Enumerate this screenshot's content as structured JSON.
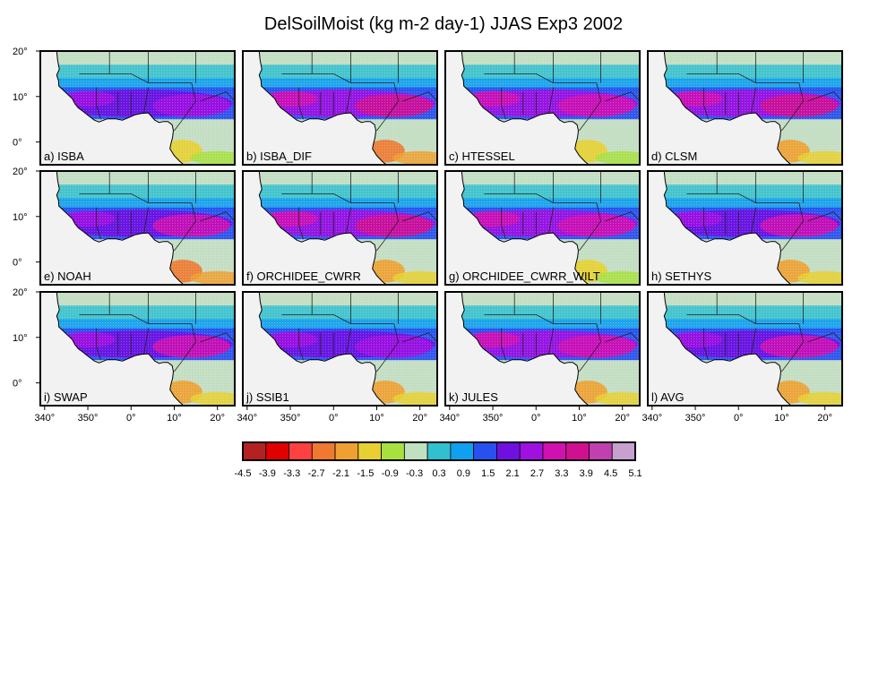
{
  "title": "DelSoilMoist (kg m-2 day-1) JJAS Exp3 2002",
  "panels": [
    {
      "label": "a) ISBA",
      "intensity": 0.45,
      "south_dry": 0.35
    },
    {
      "label": "b) ISBA_DIF",
      "intensity": 0.85,
      "south_dry": 0.9
    },
    {
      "label": "c) HTESSEL",
      "intensity": 0.8,
      "south_dry": 0.45
    },
    {
      "label": "d) CLSM",
      "intensity": 0.95,
      "south_dry": 0.6
    },
    {
      "label": "e) NOAH",
      "intensity": 0.5,
      "south_dry": 0.85
    },
    {
      "label": "f) ORCHIDEE_CWRR",
      "intensity": 0.85,
      "south_dry": 0.5
    },
    {
      "label": "g) ORCHIDEE_CWRR_WILT",
      "intensity": 0.8,
      "south_dry": 0.4
    },
    {
      "label": "h) SETHYS",
      "intensity": 0.7,
      "south_dry": 0.8
    },
    {
      "label": "i) SWAP",
      "intensity": 0.6,
      "south_dry": 0.6
    },
    {
      "label": "j) SSIB1",
      "intensity": 0.35,
      "south_dry": 0.55
    },
    {
      "label": "k) JULES",
      "intensity": 0.75,
      "south_dry": 0.5
    },
    {
      "label": "l) AVG",
      "intensity": 0.7,
      "south_dry": 0.5
    }
  ],
  "lat_ticks": [
    "20°",
    "10°",
    "0°"
  ],
  "lon_ticks": [
    "340°",
    "350°",
    "0°",
    "10°",
    "20°"
  ],
  "colorbar": {
    "levels": [
      "-4.5",
      "-3.9",
      "-3.3",
      "-2.7",
      "-2.1",
      "-1.5",
      "-0.9",
      "-0.3",
      "0.3",
      "0.9",
      "1.5",
      "2.1",
      "2.7",
      "3.3",
      "3.9",
      "4.5",
      "5.1"
    ],
    "colors": [
      "#b22222",
      "#e00000",
      "#ff4040",
      "#f07830",
      "#f0a030",
      "#e8d030",
      "#a8e040",
      "#c0e0c0",
      "#30c0d0",
      "#10a0f0",
      "#2850f0",
      "#7010e0",
      "#a010e0",
      "#d010b0",
      "#d01090",
      "#c040b0",
      "#c8a0d0"
    ]
  },
  "ocean_color": "#f2f2f2"
}
